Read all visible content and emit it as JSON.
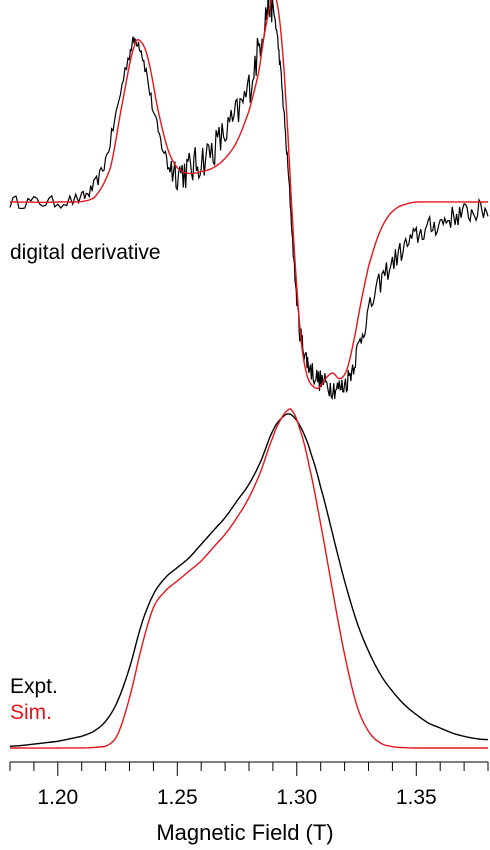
{
  "chart_data": [
    {
      "type": "line",
      "title": "",
      "annotation": "digital derivative",
      "xlabel": "Magnetic Field (T)",
      "ylabel": "",
      "xlim": [
        1.18,
        1.38
      ],
      "ylim": [
        -1.05,
        1.15
      ],
      "grid": false,
      "series": [
        {
          "name": "Expt.",
          "color": "#000000",
          "noisy": true,
          "x": [
            1.18,
            1.19,
            1.2,
            1.21,
            1.215,
            1.22,
            1.225,
            1.23,
            1.233,
            1.236,
            1.24,
            1.244,
            1.248,
            1.252,
            1.256,
            1.26,
            1.265,
            1.27,
            1.275,
            1.28,
            1.284,
            1.287,
            1.289,
            1.291,
            1.293,
            1.295,
            1.297,
            1.299,
            1.301,
            1.303,
            1.305,
            1.308,
            1.311,
            1.314,
            1.317,
            1.32,
            1.323,
            1.326,
            1.33,
            1.335,
            1.34,
            1.345,
            1.35,
            1.355,
            1.36,
            1.365,
            1.37,
            1.375,
            1.38
          ],
          "y": [
            0.0,
            0.0,
            0.0,
            0.02,
            0.08,
            0.22,
            0.5,
            0.78,
            0.85,
            0.74,
            0.48,
            0.28,
            0.18,
            0.16,
            0.18,
            0.22,
            0.28,
            0.36,
            0.46,
            0.6,
            0.8,
            0.98,
            1.05,
            0.95,
            0.72,
            0.4,
            0.05,
            -0.35,
            -0.65,
            -0.78,
            -0.86,
            -0.92,
            -0.95,
            -0.97,
            -0.98,
            -0.96,
            -0.88,
            -0.75,
            -0.58,
            -0.42,
            -0.32,
            -0.24,
            -0.18,
            -0.14,
            -0.11,
            -0.08,
            -0.06,
            -0.05,
            -0.04
          ]
        },
        {
          "name": "Sim.",
          "color": "#e8141c",
          "noisy": false,
          "x": [
            1.18,
            1.2,
            1.215,
            1.222,
            1.227,
            1.232,
            1.235,
            1.238,
            1.242,
            1.246,
            1.25,
            1.255,
            1.26,
            1.265,
            1.27,
            1.275,
            1.28,
            1.284,
            1.287,
            1.29,
            1.292,
            1.294,
            1.296,
            1.298,
            1.3,
            1.302,
            1.304,
            1.306,
            1.309,
            1.312,
            1.315,
            1.318,
            1.321,
            1.324,
            1.327,
            1.33,
            1.334,
            1.338,
            1.342,
            1.346,
            1.35,
            1.38
          ],
          "y": [
            0.0,
            0.0,
            0.02,
            0.18,
            0.52,
            0.82,
            0.84,
            0.74,
            0.48,
            0.28,
            0.18,
            0.15,
            0.16,
            0.18,
            0.23,
            0.32,
            0.48,
            0.68,
            0.92,
            1.08,
            1.03,
            0.8,
            0.42,
            -0.05,
            -0.45,
            -0.75,
            -0.9,
            -0.96,
            -0.98,
            -0.93,
            -0.9,
            -0.93,
            -0.88,
            -0.72,
            -0.52,
            -0.34,
            -0.18,
            -0.08,
            -0.03,
            -0.01,
            0.0,
            0.0
          ]
        }
      ]
    },
    {
      "type": "line",
      "title": "",
      "xlabel": "Magnetic Field (T)",
      "ylabel": "",
      "xlim": [
        1.18,
        1.38
      ],
      "ylim": [
        0,
        1.0
      ],
      "grid": false,
      "ticks": [
        1.2,
        1.25,
        1.3,
        1.35
      ],
      "tick_labels": [
        "1.20",
        "1.25",
        "1.30",
        "1.35"
      ],
      "legend": {
        "placement": "bottom-left",
        "entries": [
          "Expt.",
          "Sim."
        ]
      },
      "series": [
        {
          "name": "Expt.",
          "color": "#000000",
          "x": [
            1.18,
            1.2,
            1.21,
            1.215,
            1.22,
            1.225,
            1.23,
            1.235,
            1.24,
            1.245,
            1.25,
            1.255,
            1.26,
            1.265,
            1.27,
            1.275,
            1.28,
            1.285,
            1.29,
            1.294,
            1.297,
            1.3,
            1.303,
            1.306,
            1.31,
            1.315,
            1.32,
            1.325,
            1.33,
            1.335,
            1.34,
            1.345,
            1.35,
            1.355,
            1.36,
            1.365,
            1.37,
            1.375,
            1.38
          ],
          "y": [
            0.005,
            0.02,
            0.035,
            0.05,
            0.08,
            0.14,
            0.24,
            0.37,
            0.46,
            0.51,
            0.54,
            0.57,
            0.61,
            0.65,
            0.69,
            0.74,
            0.79,
            0.86,
            0.95,
            0.99,
            1.0,
            0.98,
            0.94,
            0.88,
            0.78,
            0.64,
            0.5,
            0.38,
            0.29,
            0.22,
            0.17,
            0.13,
            0.1,
            0.075,
            0.06,
            0.045,
            0.035,
            0.028,
            0.025
          ]
        },
        {
          "name": "Sim.",
          "color": "#e8141c",
          "x": [
            1.18,
            1.2,
            1.22,
            1.225,
            1.23,
            1.235,
            1.24,
            1.245,
            1.25,
            1.255,
            1.26,
            1.265,
            1.27,
            1.275,
            1.28,
            1.285,
            1.29,
            1.293,
            1.296,
            1.298,
            1.301,
            1.305,
            1.31,
            1.315,
            1.32,
            1.325,
            1.33,
            1.335,
            1.34,
            1.345,
            1.35,
            1.38
          ],
          "y": [
            0.0,
            0.0,
            0.005,
            0.04,
            0.15,
            0.3,
            0.42,
            0.47,
            0.5,
            0.53,
            0.56,
            0.6,
            0.64,
            0.69,
            0.75,
            0.83,
            0.93,
            0.98,
            1.01,
            1.01,
            0.96,
            0.85,
            0.67,
            0.47,
            0.28,
            0.13,
            0.05,
            0.015,
            0.004,
            0.001,
            0.0,
            0.0
          ]
        }
      ]
    }
  ]
}
